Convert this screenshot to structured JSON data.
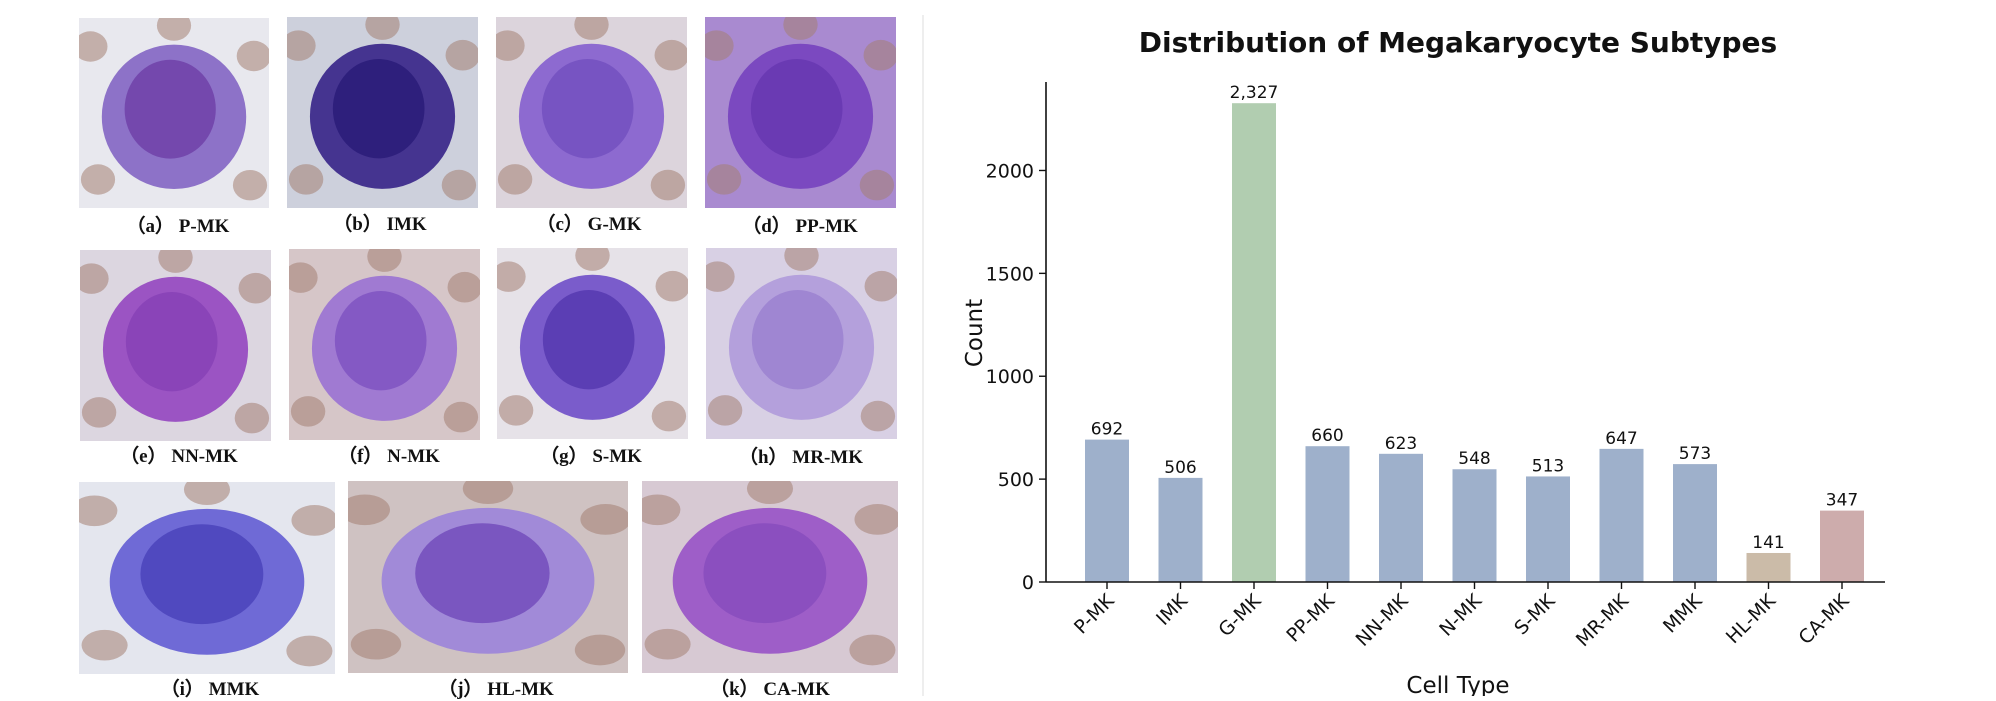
{
  "panels": [
    {
      "key": "a",
      "label": "P-MK",
      "caption": "（a） P-MK",
      "bg": "#e8e8ee",
      "cell": "#8d72c8",
      "nucleus": "#7448ad"
    },
    {
      "key": "b",
      "label": "IMK",
      "caption": "（b） IMK",
      "bg": "#cdd0dc",
      "cell": "#453490",
      "nucleus": "#2e1f7c"
    },
    {
      "key": "c",
      "label": "G-MK",
      "caption": "（c） G-MK",
      "bg": "#dcd4dc",
      "cell": "#8d6ad0",
      "nucleus": "#7754c2"
    },
    {
      "key": "d",
      "label": "PP-MK",
      "caption": "（d） PP-MK",
      "bg": "#a98ad0",
      "cell": "#7b49c0",
      "nucleus": "#6a3ab3"
    },
    {
      "key": "e",
      "label": "NN-MK",
      "caption": "（e） NN-MK",
      "bg": "#dcd6e0",
      "cell": "#9b54c3",
      "nucleus": "#8a44b8"
    },
    {
      "key": "f",
      "label": "N-MK",
      "caption": "（f） N-MK",
      "bg": "#d6c6c8",
      "cell": "#a07ad2",
      "nucleus": "#8459c4"
    },
    {
      "key": "g",
      "label": "S-MK",
      "caption": "（g） S-MK",
      "bg": "#e6e2e8",
      "cell": "#7a5ccb",
      "nucleus": "#5b3eb4"
    },
    {
      "key": "h",
      "label": "MR-MK",
      "caption": "（h） MR-MK",
      "bg": "#d8d0e4",
      "cell": "#b4a0dc",
      "nucleus": "#9f86d2"
    },
    {
      "key": "i",
      "label": "MMK",
      "caption": "（i） MMK",
      "bg": "#e4e6ee",
      "cell": "#6f6ad6",
      "nucleus": "#5049bf"
    },
    {
      "key": "j",
      "label": "HL-MK",
      "caption": "（j） HL-MK",
      "bg": "#cfc2c2",
      "cell": "#a18ad8",
      "nucleus": "#7a56c0"
    },
    {
      "key": "k",
      "label": "CA-MK",
      "caption": "（k） CA-MK",
      "bg": "#d7c9d3",
      "cell": "#9e5ec8",
      "nucleus": "#8b4fbf"
    }
  ],
  "chart_data": {
    "type": "bar",
    "title": "Distribution of Megakaryocyte Subtypes",
    "xlabel": "Cell Type",
    "ylabel": "Count",
    "ylim": [
      0,
      2430
    ],
    "yticks": [
      0,
      500,
      1000,
      1500,
      2000
    ],
    "categories": [
      "P-MK",
      "IMK",
      "G-MK",
      "PP-MK",
      "NN-MK",
      "N-MK",
      "S-MK",
      "MR-MK",
      "MMK",
      "HL-MK",
      "CA-MK"
    ],
    "values": [
      692,
      506,
      2327,
      660,
      623,
      548,
      513,
      647,
      573,
      141,
      347
    ],
    "value_labels": [
      "692",
      "506",
      "2,327",
      "660",
      "623",
      "548",
      "513",
      "647",
      "573",
      "141",
      "347"
    ],
    "colors": [
      "#9eb0cb",
      "#9eb0cb",
      "#b1cdb0",
      "#9eb0cb",
      "#9eb0cb",
      "#9eb0cb",
      "#9eb0cb",
      "#9eb0cb",
      "#9eb0cb",
      "#cbbba8",
      "#cdacac"
    ],
    "grid": false
  }
}
